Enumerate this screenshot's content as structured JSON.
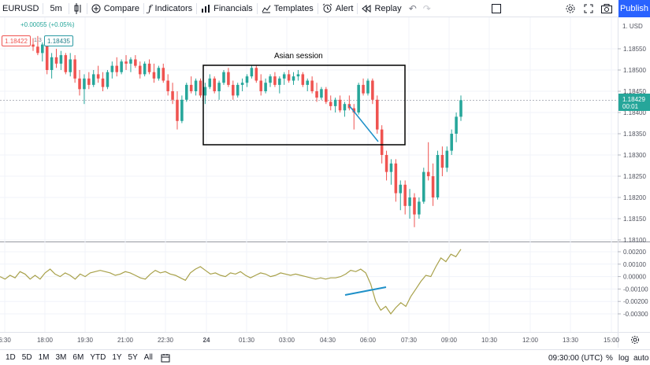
{
  "toolbar": {
    "symbol": "EURUSD",
    "interval": "5m",
    "compare": "Compare",
    "indicators": "Indicators",
    "financials": "Financials",
    "templates": "Templates",
    "alert": "Alert",
    "replay": "Replay",
    "publish": "Publish"
  },
  "legend": {
    "change": "+0.00055 (+0.05%)",
    "sell_price": "1.18422",
    "spread": "1.3",
    "buy_price": "1.18435"
  },
  "annotation": {
    "session_label": "Asian session"
  },
  "price_scale": {
    "currency_label": "1. USD",
    "labels": [
      "1.18550",
      "1.18500",
      "1.18450",
      "1.18400",
      "1.18350",
      "1.18300",
      "1.18250",
      "1.18200",
      "1.18150",
      "1.18100"
    ],
    "last_price": "1.18429",
    "countdown": "00:01"
  },
  "indicator_scale": {
    "labels": [
      "0.00200",
      "0.00100",
      "0.00000",
      "-0.00100",
      "-0.00200",
      "-0.00300"
    ]
  },
  "time_axis": {
    "labels": [
      "6:30",
      "18:00",
      "19:30",
      "21:00",
      "22:30",
      "24",
      "01:30",
      "03:00",
      "04:30",
      "06:00",
      "07:30",
      "09:00",
      "10:30",
      "12:00",
      "13:30",
      "15:00"
    ]
  },
  "bottom_bar": {
    "ranges": [
      "1D",
      "5D",
      "1M",
      "3M",
      "6M",
      "YTD",
      "1Y",
      "5Y",
      "All"
    ],
    "clock": "09:30:00 (UTC)",
    "percent": "%",
    "log": "log",
    "auto": "auto"
  },
  "colors": {
    "up": "#26a69a",
    "down": "#ef5350",
    "oscillator": "#a8a14a",
    "trendline": "#1e90c8",
    "accent": "#2962ff"
  },
  "chart_data": {
    "type": "candlestick",
    "symbol": "EURUSD",
    "interval": "5m",
    "ylim": [
      1.181,
      1.1858
    ],
    "ohlc": [
      [
        1.1856,
        1.18575,
        1.18545,
        1.18555
      ],
      [
        1.18555,
        1.1858,
        1.18535,
        1.1854
      ],
      [
        1.1854,
        1.18565,
        1.1852,
        1.1856
      ],
      [
        1.1856,
        1.1857,
        1.1849,
        1.185
      ],
      [
        1.185,
        1.1854,
        1.1848,
        1.1853
      ],
      [
        1.1853,
        1.1855,
        1.18505,
        1.18515
      ],
      [
        1.18515,
        1.18545,
        1.185,
        1.18535
      ],
      [
        1.18535,
        1.1854,
        1.1849,
        1.18495
      ],
      [
        1.18495,
        1.1854,
        1.18485,
        1.18525
      ],
      [
        1.18525,
        1.18535,
        1.1847,
        1.1848
      ],
      [
        1.1848,
        1.185,
        1.1844,
        1.18455
      ],
      [
        1.18455,
        1.1849,
        1.1842,
        1.1848
      ],
      [
        1.1848,
        1.18495,
        1.18455,
        1.18465
      ],
      [
        1.18465,
        1.185,
        1.1846,
        1.1849
      ],
      [
        1.1849,
        1.1851,
        1.1847,
        1.1848
      ],
      [
        1.1848,
        1.18495,
        1.1845,
        1.1846
      ],
      [
        1.1846,
        1.185,
        1.18455,
        1.18495
      ],
      [
        1.18495,
        1.1852,
        1.1848,
        1.1851
      ],
      [
        1.1851,
        1.1853,
        1.18485,
        1.18495
      ],
      [
        1.18495,
        1.18525,
        1.1849,
        1.1852
      ],
      [
        1.1852,
        1.18535,
        1.185,
        1.18515
      ],
      [
        1.18515,
        1.1853,
        1.18495,
        1.18525
      ],
      [
        1.18525,
        1.18535,
        1.18505,
        1.1851
      ],
      [
        1.1851,
        1.1852,
        1.1848,
        1.1849
      ],
      [
        1.1849,
        1.1852,
        1.18485,
        1.18515
      ],
      [
        1.18515,
        1.18525,
        1.1849,
        1.18495
      ],
      [
        1.18495,
        1.18515,
        1.1847,
        1.1848
      ],
      [
        1.1848,
        1.1851,
        1.18475,
        1.18505
      ],
      [
        1.18505,
        1.18515,
        1.1847,
        1.18475
      ],
      [
        1.18475,
        1.1849,
        1.1844,
        1.1845
      ],
      [
        1.1845,
        1.1847,
        1.1842,
        1.1843
      ],
      [
        1.1843,
        1.1845,
        1.1836,
        1.1838
      ],
      [
        1.1838,
        1.1844,
        1.18375,
        1.1843
      ],
      [
        1.1843,
        1.1847,
        1.18425,
        1.18465
      ],
      [
        1.18465,
        1.18485,
        1.18445,
        1.1845
      ],
      [
        1.1845,
        1.1848,
        1.1844,
        1.18475
      ],
      [
        1.18475,
        1.1848,
        1.18435,
        1.1844
      ],
      [
        1.1844,
        1.1847,
        1.1842,
        1.1846
      ],
      [
        1.1846,
        1.1849,
        1.18455,
        1.1848
      ],
      [
        1.1848,
        1.18485,
        1.18445,
        1.1845
      ],
      [
        1.1845,
        1.18475,
        1.1843,
        1.1847
      ],
      [
        1.1847,
        1.185,
        1.18465,
        1.18495
      ],
      [
        1.18495,
        1.18505,
        1.1846,
        1.18465
      ],
      [
        1.18465,
        1.18475,
        1.1843,
        1.1844
      ],
      [
        1.1844,
        1.1847,
        1.18435,
        1.18465
      ],
      [
        1.18465,
        1.1848,
        1.1845,
        1.1847
      ],
      [
        1.1847,
        1.1849,
        1.1846,
        1.18485
      ],
      [
        1.18485,
        1.1851,
        1.1848,
        1.18505
      ],
      [
        1.18505,
        1.1851,
        1.1847,
        1.18475
      ],
      [
        1.18475,
        1.1849,
        1.1844,
        1.1845
      ],
      [
        1.1845,
        1.1848,
        1.18445,
        1.1847
      ],
      [
        1.1847,
        1.1849,
        1.1846,
        1.18485
      ],
      [
        1.18485,
        1.18495,
        1.1846,
        1.18465
      ],
      [
        1.18465,
        1.18485,
        1.18445,
        1.1848
      ],
      [
        1.1848,
        1.18495,
        1.18465,
        1.1849
      ],
      [
        1.1849,
        1.185,
        1.1847,
        1.18475
      ],
      [
        1.18475,
        1.18495,
        1.18465,
        1.18485
      ],
      [
        1.18485,
        1.185,
        1.18475,
        1.1849
      ],
      [
        1.1849,
        1.18495,
        1.1846,
        1.18465
      ],
      [
        1.18465,
        1.1848,
        1.1845,
        1.18475
      ],
      [
        1.18475,
        1.18485,
        1.18445,
        1.1845
      ],
      [
        1.1845,
        1.1847,
        1.18425,
        1.18435
      ],
      [
        1.18435,
        1.1846,
        1.1843,
        1.18455
      ],
      [
        1.18455,
        1.1846,
        1.1842,
        1.18425
      ],
      [
        1.18425,
        1.1844,
        1.18405,
        1.18415
      ],
      [
        1.18415,
        1.18435,
        1.184,
        1.1843
      ],
      [
        1.1843,
        1.1844,
        1.184,
        1.18405
      ],
      [
        1.18405,
        1.18425,
        1.1839,
        1.1842
      ],
      [
        1.1842,
        1.1844,
        1.18405,
        1.1841
      ],
      [
        1.1841,
        1.1842,
        1.1836,
        1.184
      ],
      [
        1.184,
        1.1847,
        1.18395,
        1.18465
      ],
      [
        1.18465,
        1.1848,
        1.1844,
        1.18445
      ],
      [
        1.18445,
        1.1848,
        1.1844,
        1.18475
      ],
      [
        1.18475,
        1.1848,
        1.1842,
        1.1843
      ],
      [
        1.1843,
        1.1844,
        1.1835,
        1.1836
      ],
      [
        1.1836,
        1.1837,
        1.1828,
        1.183
      ],
      [
        1.183,
        1.1831,
        1.1824,
        1.1826
      ],
      [
        1.1826,
        1.1829,
        1.1823,
        1.1828
      ],
      [
        1.1828,
        1.1829,
        1.1819,
        1.1821
      ],
      [
        1.1821,
        1.1824,
        1.1817,
        1.1823
      ],
      [
        1.1823,
        1.1824,
        1.1816,
        1.1818
      ],
      [
        1.1818,
        1.1822,
        1.1815,
        1.182
      ],
      [
        1.182,
        1.1821,
        1.1813,
        1.1816
      ],
      [
        1.1816,
        1.182,
        1.1815,
        1.1819
      ],
      [
        1.1819,
        1.1827,
        1.18185,
        1.1826
      ],
      [
        1.1826,
        1.1833,
        1.1824,
        1.1825
      ],
      [
        1.1825,
        1.1828,
        1.1818,
        1.182
      ],
      [
        1.182,
        1.1831,
        1.18195,
        1.183
      ],
      [
        1.183,
        1.1832,
        1.1825,
        1.1827
      ],
      [
        1.1827,
        1.1832,
        1.1826,
        1.1831
      ],
      [
        1.1831,
        1.1836,
        1.183,
        1.1835
      ],
      [
        1.1835,
        1.184,
        1.1833,
        1.1839
      ],
      [
        1.1839,
        1.1844,
        1.1838,
        1.18429
      ]
    ],
    "oscillator": [
      0.0,
      -0.0002,
      0.0001,
      -0.0001,
      0.0004,
      0.0002,
      -0.0002,
      0.0001,
      -0.0002,
      0.0003,
      0.0006,
      0.0002,
      0.0,
      0.0003,
      0.0001,
      -0.0002,
      0.0002,
      0.0,
      0.0003,
      0.0004,
      0.0005,
      0.0004,
      0.0003,
      0.0001,
      0.0002,
      0.0004,
      0.0003,
      0.0001,
      -0.0001,
      -0.0002,
      0.0002,
      0.0005,
      0.0003,
      0.0004,
      0.0002,
      0.0001,
      -0.0001,
      -0.0003,
      0.0003,
      0.0006,
      0.0008,
      0.0005,
      0.0002,
      0.0003,
      0.0001,
      0.0,
      0.0003,
      0.0002,
      0.0004,
      0.0001,
      -0.0001,
      0.0001,
      0.0003,
      0.0002,
      0.0,
      0.0001,
      0.0003,
      0.0002,
      0.0001,
      0.0002,
      0.0001,
      0.0,
      -0.0001,
      -0.0002,
      -0.0001,
      -0.0002,
      -0.0001,
      -0.0001,
      0.0,
      0.0002,
      0.0005,
      0.0004,
      0.0006,
      0.0003,
      -0.0006,
      -0.002,
      -0.0027,
      -0.0024,
      -0.003,
      -0.0025,
      -0.0021,
      -0.0024,
      -0.0016,
      -0.001,
      -0.0004,
      0.0001,
      0.0,
      0.0008,
      0.0015,
      0.0012,
      0.0018,
      0.0016,
      0.0022
    ]
  }
}
